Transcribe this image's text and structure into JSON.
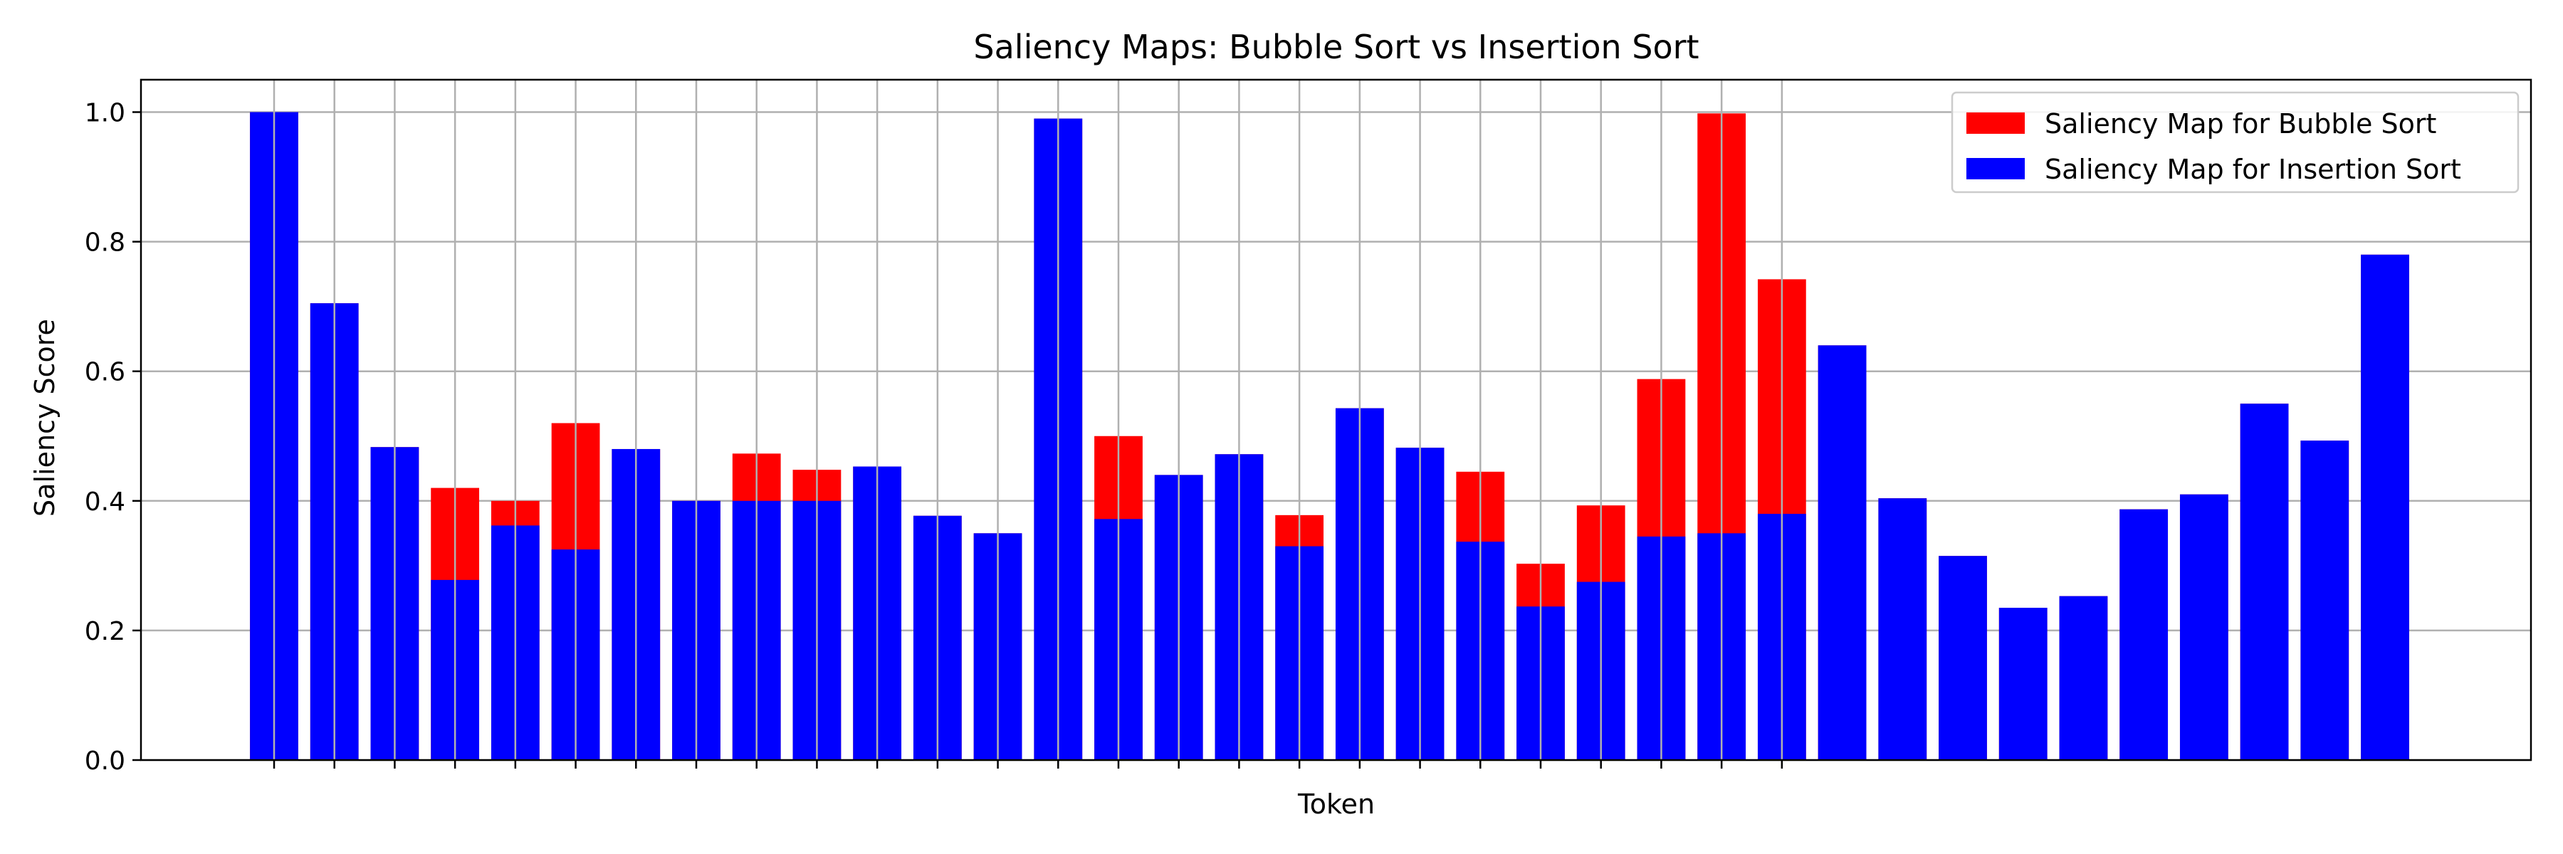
{
  "chart_data": {
    "type": "bar",
    "title": "Saliency Maps: Bubble Sort vs Insertion Sort",
    "xlabel": "Token",
    "ylabel": "Saliency Score",
    "ylim": [
      0,
      1.05
    ],
    "yticks": [
      "0.0",
      "0.2",
      "0.4",
      "0.6",
      "0.8",
      "1.0"
    ],
    "grid": true,
    "legend_position": "top-right",
    "x_tick_labels_visible": false,
    "series": [
      {
        "name": "Saliency Map for Bubble Sort",
        "color": "#ff0000",
        "values": [
          1.0,
          0.705,
          0.483,
          0.42,
          0.4,
          0.52,
          0.48,
          0.4,
          0.473,
          0.448,
          0.453,
          0.377,
          0.35,
          0.99,
          0.5,
          0.44,
          0.472,
          0.378,
          0.543,
          0.482,
          0.445,
          0.303,
          0.393,
          0.588,
          0.998,
          0.742,
          0.64,
          0.404,
          0.315,
          0.235,
          0.253,
          0.387,
          0.41,
          0.55,
          0.493,
          0.78
        ]
      },
      {
        "name": "Saliency Map for Insertion Sort",
        "color": "#0000ff",
        "values": [
          1.0,
          0.705,
          0.483,
          0.278,
          0.362,
          0.325,
          0.48,
          0.4,
          0.4,
          0.4,
          0.453,
          0.377,
          0.35,
          0.99,
          0.372,
          0.44,
          0.472,
          0.33,
          0.543,
          0.482,
          0.337,
          0.237,
          0.275,
          0.345,
          0.35,
          0.38,
          0.64,
          0.404,
          0.315,
          0.235,
          0.253,
          0.387,
          0.41,
          0.55,
          0.493,
          0.78
        ]
      }
    ]
  }
}
